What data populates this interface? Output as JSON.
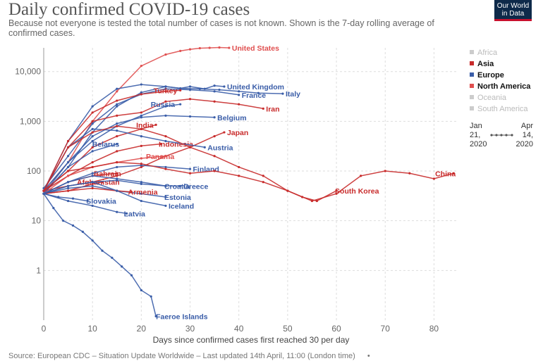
{
  "header": {
    "title": "Daily confirmed COVID-19 cases",
    "subtitle": "Because not everyone is tested the total number of cases is not known. Shown is the 7-day rolling average of confirmed cases.",
    "logo_line1": "Our World",
    "logo_line2": "in Data"
  },
  "footer": {
    "source": "Source: European CDC – Situation Update Worldwide – Last updated 14th April, 11:00 (London time)",
    "dot": "•"
  },
  "legend": {
    "items": [
      {
        "label": "Africa",
        "color": "#cccccc",
        "active": false
      },
      {
        "label": "Asia",
        "color": "#c82b2b",
        "active": true
      },
      {
        "label": "Europe",
        "color": "#3a5da8",
        "active": true
      },
      {
        "label": "North America",
        "color": "#e04f4f",
        "active": true
      },
      {
        "label": "Oceania",
        "color": "#cccccc",
        "active": false
      },
      {
        "label": "South America",
        "color": "#cccccc",
        "active": false
      }
    ]
  },
  "timeline": {
    "start_month": "Jan",
    "start_day": "21,",
    "start_year": "2020",
    "end_month": "Apr",
    "end_day": "14,",
    "end_year": "2020"
  },
  "chart_data": {
    "type": "line",
    "title": "Daily confirmed COVID-19 cases",
    "xlabel": "Days since confirmed cases first reached 30 per day",
    "ylabel": "",
    "xlim": [
      0,
      85
    ],
    "ylim": [
      0.1,
      30000
    ],
    "yscale": "log",
    "x_ticks": [
      0,
      10,
      20,
      30,
      40,
      50,
      60,
      70,
      80
    ],
    "y_ticks": [
      {
        "v": 1,
        "label": "1"
      },
      {
        "v": 10,
        "label": "10"
      },
      {
        "v": 100,
        "label": "100"
      },
      {
        "v": 1000,
        "label": "1,000"
      },
      {
        "v": 10000,
        "label": "10,000"
      }
    ],
    "grid": true,
    "legend_position": "right",
    "colors": {
      "Asia": "#c82b2b",
      "Europe": "#3a5da8",
      "North America": "#e04f4f"
    },
    "series": [
      {
        "name": "United States",
        "region": "North America",
        "label_dx": 4,
        "x": [
          0,
          5,
          10,
          15,
          20,
          25,
          28,
          30,
          32,
          34,
          36,
          38
        ],
        "y": [
          40,
          150,
          1000,
          4000,
          13000,
          22000,
          26000,
          28000,
          29500,
          30000,
          30500,
          30000
        ]
      },
      {
        "name": "United Kingdom",
        "region": "Europe",
        "label_dx": 4,
        "x": [
          0,
          5,
          10,
          15,
          20,
          25,
          28,
          30,
          33,
          35,
          37
        ],
        "y": [
          35,
          120,
          600,
          2000,
          3800,
          5000,
          4600,
          5000,
          4500,
          5200,
          5000
        ]
      },
      {
        "name": "Italy",
        "region": "Europe",
        "label_dx": 4,
        "x": [
          0,
          5,
          10,
          15,
          20,
          25,
          28,
          32,
          36,
          40,
          44,
          49
        ],
        "y": [
          40,
          400,
          2000,
          4500,
          5500,
          5000,
          4600,
          4500,
          4300,
          4000,
          3700,
          3600
        ]
      },
      {
        "name": "France",
        "region": "Europe",
        "label_dx": 4,
        "x": [
          0,
          5,
          10,
          15,
          20,
          25,
          30,
          35,
          40
        ],
        "y": [
          45,
          200,
          900,
          2200,
          3500,
          4500,
          4300,
          4000,
          3400
        ]
      },
      {
        "name": "Iran",
        "region": "Asia",
        "label_dx": 4,
        "x": [
          0,
          5,
          10,
          15,
          20,
          25,
          30,
          35,
          40,
          45
        ],
        "y": [
          40,
          300,
          1000,
          1300,
          1500,
          2500,
          2800,
          2500,
          2200,
          1800
        ]
      },
      {
        "name": "Turkey",
        "region": "Asia",
        "label_dx": -38,
        "x": [
          0,
          5,
          10,
          15,
          20,
          25,
          28
        ],
        "y": [
          40,
          400,
          1500,
          2600,
          3500,
          4000,
          4200
        ]
      },
      {
        "name": "Russia",
        "region": "Europe",
        "label_dx": -42,
        "x": [
          0,
          5,
          10,
          15,
          20,
          25,
          28
        ],
        "y": [
          35,
          150,
          400,
          800,
          1300,
          2000,
          2200
        ]
      },
      {
        "name": "Belgium",
        "region": "Europe",
        "label_dx": 4,
        "x": [
          0,
          5,
          10,
          15,
          20,
          25,
          30,
          35
        ],
        "y": [
          40,
          150,
          500,
          900,
          1200,
          1300,
          1250,
          1200
        ]
      },
      {
        "name": "India",
        "region": "Asia",
        "label_dx": -28,
        "x": [
          0,
          5,
          10,
          15,
          20,
          23
        ],
        "y": [
          40,
          100,
          300,
          500,
          700,
          850
        ]
      },
      {
        "name": "Japan",
        "region": "Asia",
        "label_dx": 4,
        "x": [
          0,
          5,
          10,
          15,
          20,
          25,
          30,
          35,
          37
        ],
        "y": [
          40,
          50,
          60,
          80,
          120,
          200,
          300,
          500,
          600
        ]
      },
      {
        "name": "Belarus",
        "region": "Europe",
        "label_dx": -35,
        "x": [
          0,
          5,
          10,
          15
        ],
        "y": [
          35,
          120,
          250,
          350
        ]
      },
      {
        "name": "Indonesia",
        "region": "Asia",
        "label_dx": -3,
        "x": [
          0,
          5,
          10,
          15,
          20,
          24
        ],
        "y": [
          40,
          80,
          150,
          250,
          320,
          350
        ]
      },
      {
        "name": "Austria",
        "region": "Europe",
        "label_dx": 4,
        "x": [
          0,
          5,
          10,
          15,
          20,
          25,
          33
        ],
        "y": [
          40,
          300,
          700,
          650,
          500,
          400,
          300
        ]
      },
      {
        "name": "Panama",
        "region": "North America",
        "label_dx": -28,
        "x": [
          0,
          5,
          10,
          15,
          20,
          25
        ],
        "y": [
          35,
          80,
          120,
          150,
          180,
          200
        ]
      },
      {
        "name": "Bahrain",
        "region": "Asia",
        "label_dx": -33,
        "x": [
          0,
          5,
          10,
          15
        ],
        "y": [
          35,
          60,
          80,
          90
        ]
      },
      {
        "name": "Finland",
        "region": "Europe",
        "label_dx": 4,
        "x": [
          0,
          5,
          10,
          15,
          20,
          25,
          30
        ],
        "y": [
          35,
          60,
          90,
          120,
          130,
          120,
          110
        ]
      },
      {
        "name": "China",
        "region": "Asia",
        "label_dx": -26,
        "x": [
          0,
          5,
          10,
          15,
          20,
          25,
          30,
          35,
          40,
          45,
          50,
          55,
          60,
          65,
          70,
          75,
          80,
          84
        ],
        "y": [
          40,
          100,
          120,
          150,
          140,
          110,
          90,
          100,
          80,
          60,
          40,
          25,
          35,
          80,
          100,
          90,
          70,
          90
        ]
      },
      {
        "name": "South Korea",
        "region": "Asia",
        "label_dx": -2,
        "x": [
          0,
          5,
          10,
          15,
          20,
          25,
          30,
          35,
          40,
          45,
          50,
          53,
          56,
          60
        ],
        "y": [
          40,
          300,
          600,
          800,
          700,
          500,
          300,
          200,
          120,
          80,
          40,
          30,
          25,
          40
        ]
      },
      {
        "name": "Afghanistan",
        "region": "Asia",
        "label_dx": -36,
        "x": [
          0,
          5,
          10,
          12
        ],
        "y": [
          35,
          40,
          55,
          60
        ]
      },
      {
        "name": "Croatia",
        "region": "Europe",
        "label_dx": -2,
        "x": [
          0,
          5,
          10,
          15,
          20,
          25
        ],
        "y": [
          35,
          60,
          80,
          70,
          60,
          50
        ]
      },
      {
        "name": "Greece",
        "region": "Europe",
        "label_dx": 4,
        "x": [
          0,
          5,
          10,
          15,
          20,
          25,
          28
        ],
        "y": [
          35,
          50,
          60,
          65,
          55,
          50,
          50
        ]
      },
      {
        "name": "Estonia",
        "region": "Europe",
        "label_dx": -2,
        "x": [
          0,
          5,
          10,
          15,
          20,
          25
        ],
        "y": [
          35,
          45,
          50,
          40,
          35,
          30
        ]
      },
      {
        "name": "Armenia",
        "region": "Asia",
        "label_dx": -5,
        "x": [
          0,
          5,
          10,
          15,
          18
        ],
        "y": [
          35,
          40,
          45,
          40,
          38
        ]
      },
      {
        "name": "Slovakia",
        "region": "Europe",
        "label_dx": -2,
        "x": [
          0,
          3,
          6,
          9
        ],
        "y": [
          35,
          30,
          28,
          25
        ]
      },
      {
        "name": "Iceland",
        "region": "Europe",
        "label_dx": 4,
        "x": [
          0,
          5,
          10,
          15,
          20,
          25
        ],
        "y": [
          35,
          50,
          60,
          40,
          25,
          20
        ]
      },
      {
        "name": "Latvia",
        "region": "Europe",
        "label_dx": -4,
        "x": [
          0,
          5,
          10,
          15,
          17
        ],
        "y": [
          35,
          25,
          20,
          15,
          14
        ]
      },
      {
        "name": "Faeroe Islands",
        "region": "Europe",
        "label_dx": 0,
        "x": [
          0,
          2,
          4,
          6,
          8,
          10,
          12,
          14,
          16,
          18,
          20,
          22,
          23
        ],
        "y": [
          35,
          18,
          10,
          8,
          6,
          4,
          2.5,
          1.8,
          1.2,
          0.8,
          0.4,
          0.3,
          0.12
        ]
      }
    ]
  }
}
